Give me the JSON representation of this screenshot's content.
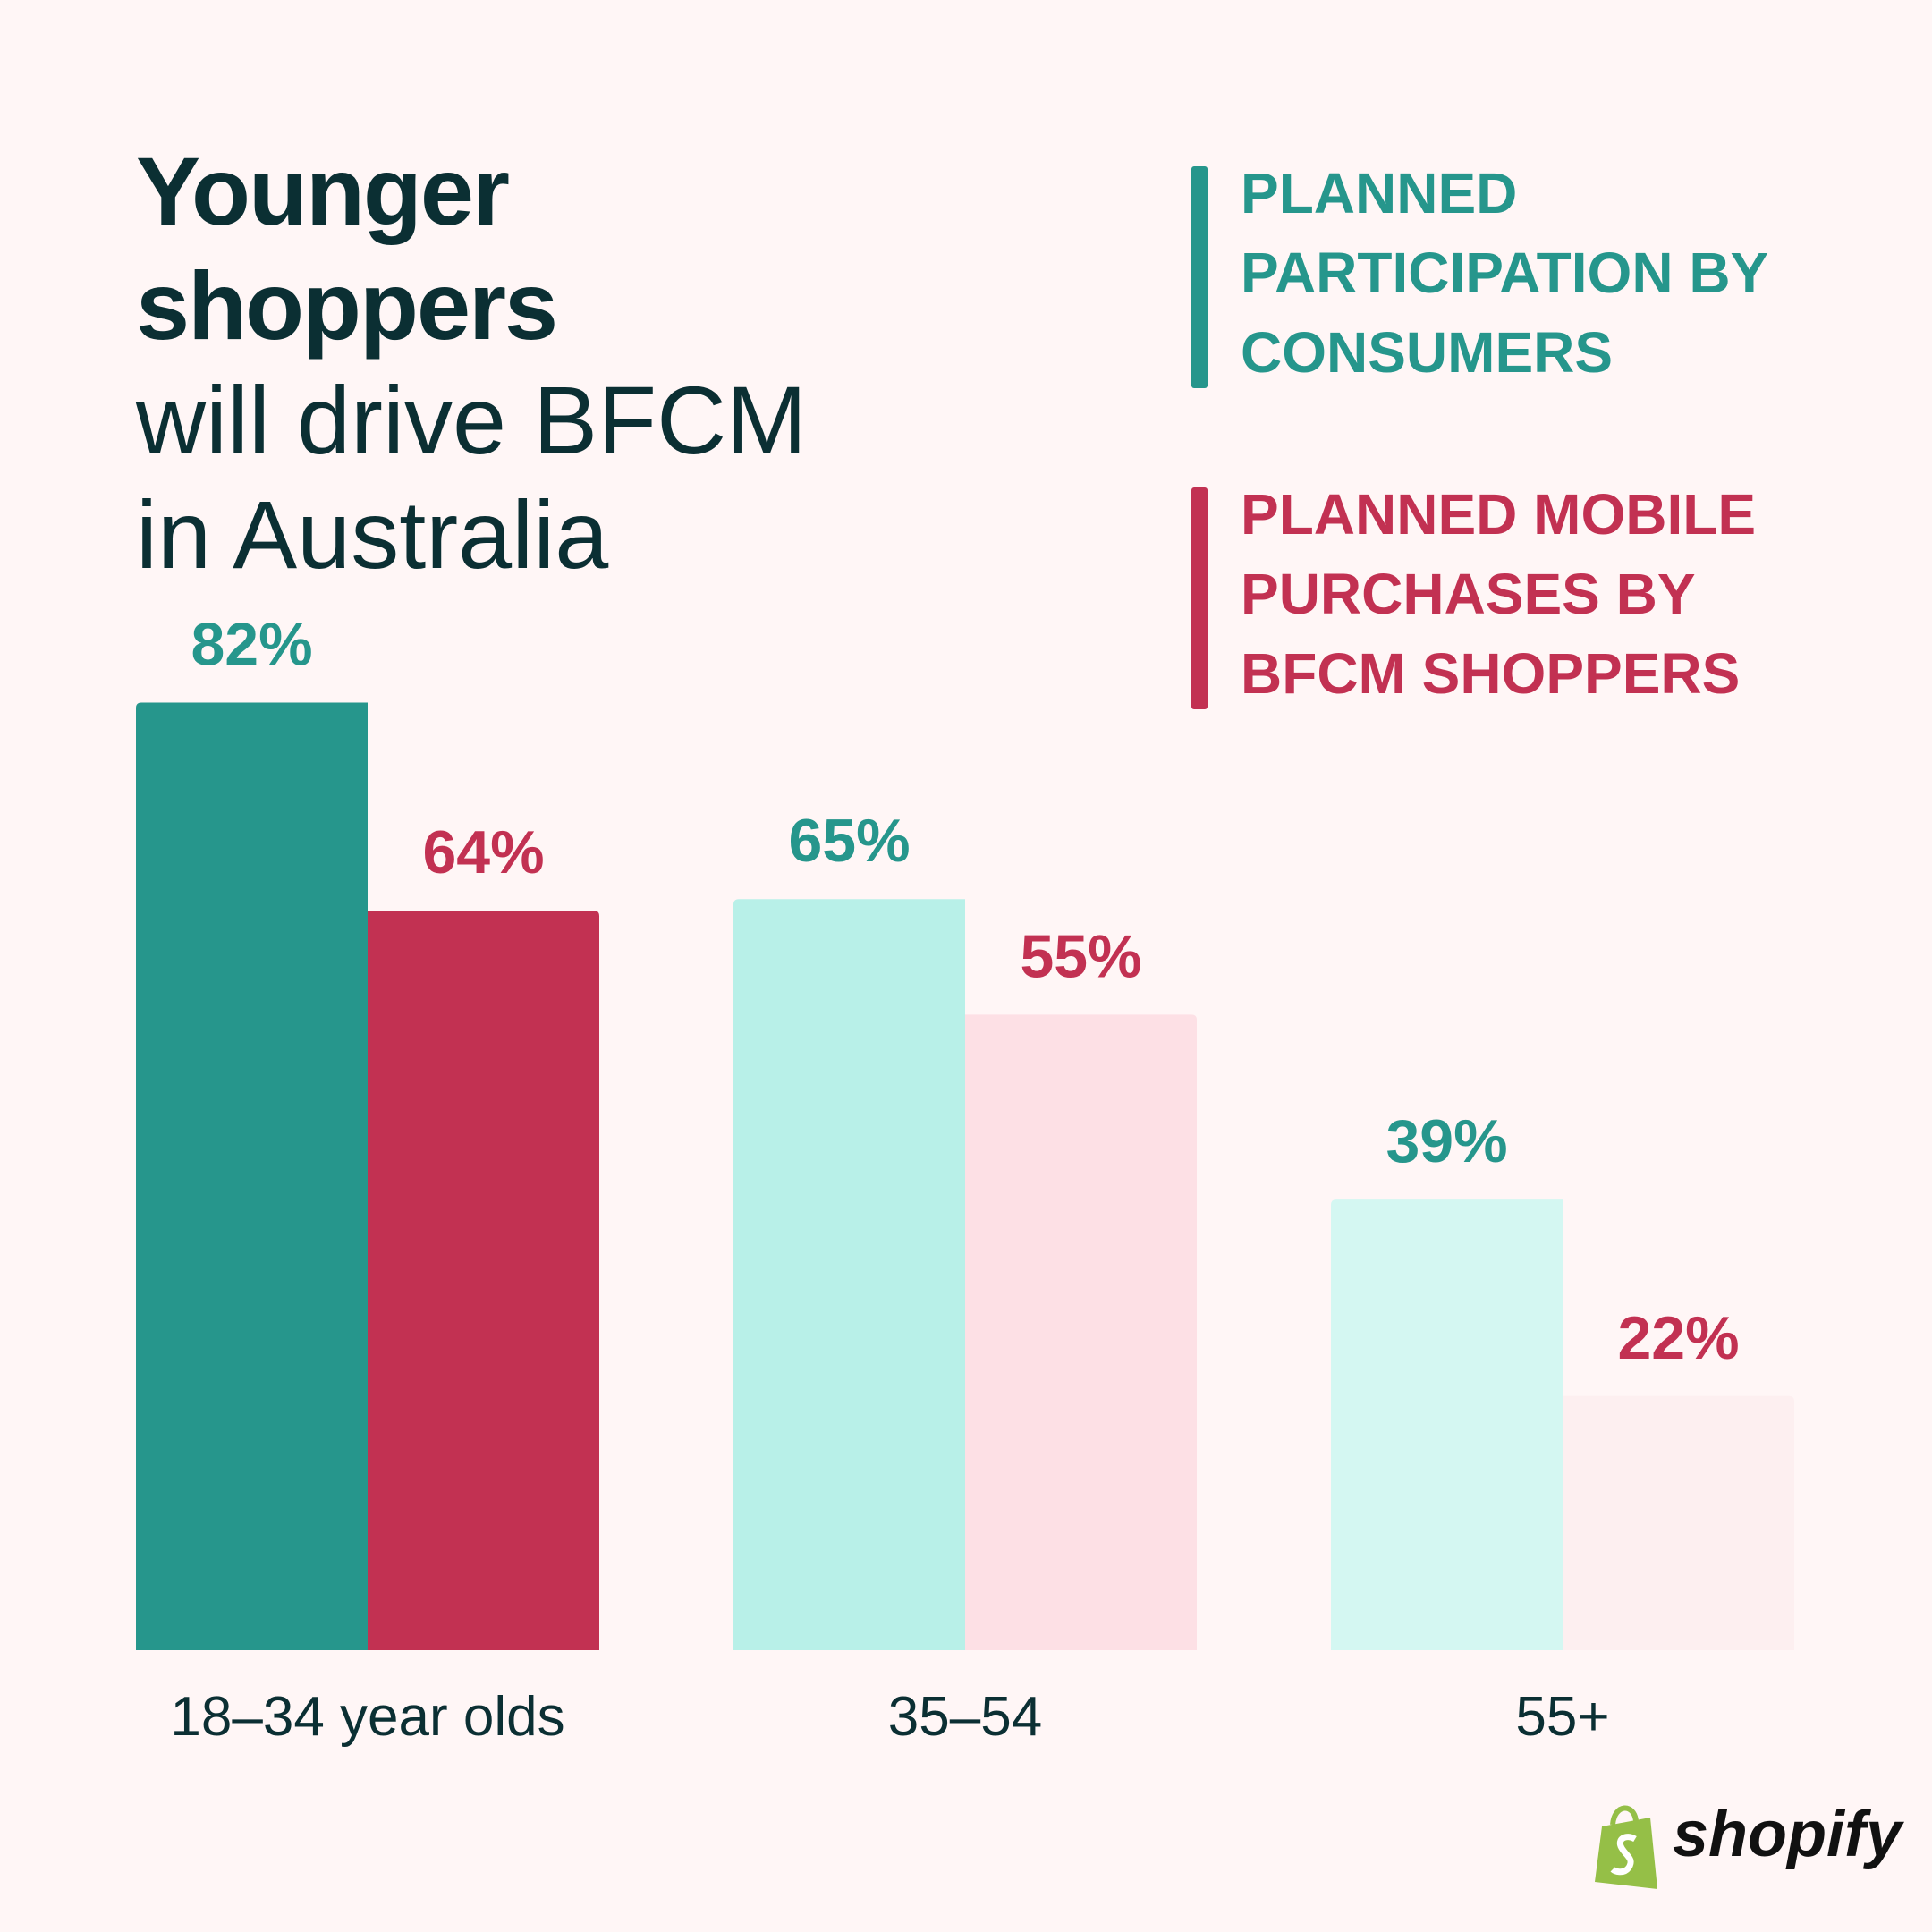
{
  "chart_data": {
    "type": "bar",
    "title": "Younger shoppers",
    "subtitle": "will drive BFCM in Australia",
    "categories": [
      "18–34 year olds",
      "35–54",
      "55+"
    ],
    "series": [
      {
        "name": "PLANNED PARTICIPATION BY CONSUMERS",
        "color": "#26968c",
        "colors": [
          "#26968c",
          "#b8f0e8",
          "#d4f7f2"
        ],
        "values": [
          82,
          65,
          39
        ],
        "value_labels": [
          "82%",
          "65%",
          "39%"
        ]
      },
      {
        "name": "PLANNED MOBILE PURCHASES BY BFCM SHOPPERS",
        "color": "#c23152",
        "colors": [
          "#c23152",
          "#fde0e5",
          "#fdeff0"
        ],
        "values": [
          64,
          55,
          22
        ],
        "value_labels": [
          "64%",
          "55%",
          "22%"
        ]
      }
    ],
    "brand": "shopify"
  }
}
